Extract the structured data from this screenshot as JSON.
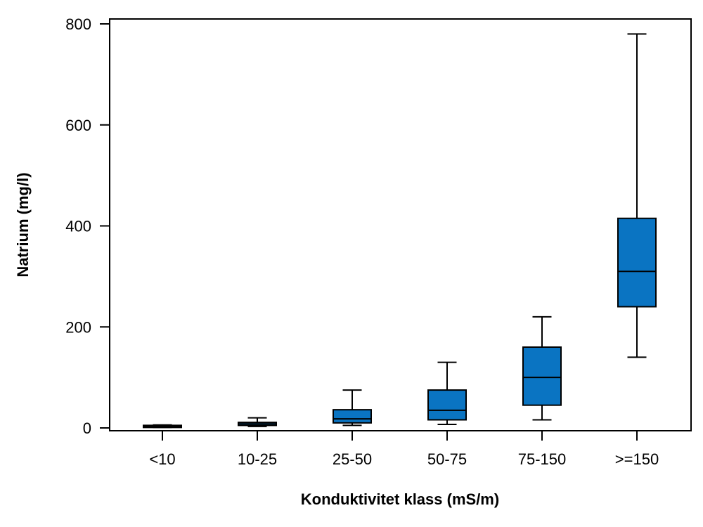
{
  "chart_data": {
    "type": "box",
    "xlabel": "Konduktivitet klass (mS/m)",
    "ylabel": "Natrium (mg/l)",
    "ylim": [
      0,
      800
    ],
    "yticks": [
      0,
      200,
      400,
      600,
      800
    ],
    "grid": false,
    "categories": [
      "<10",
      "10-25",
      "25-50",
      "50-75",
      "75-150",
      ">=150"
    ],
    "boxes": [
      {
        "category": "<10",
        "whisker_low": 1,
        "q1": 2,
        "median": 3,
        "q3": 4,
        "whisker_high": 6
      },
      {
        "category": "10-25",
        "whisker_low": 3,
        "q1": 5,
        "median": 8,
        "q3": 11,
        "whisker_high": 20
      },
      {
        "category": "25-50",
        "whisker_low": 5,
        "q1": 10,
        "median": 18,
        "q3": 36,
        "whisker_high": 75
      },
      {
        "category": "50-75",
        "whisker_low": 7,
        "q1": 16,
        "median": 35,
        "q3": 75,
        "whisker_high": 130
      },
      {
        "category": "75-150",
        "whisker_low": 16,
        "q1": 45,
        "median": 100,
        "q3": 160,
        "whisker_high": 220
      },
      {
        "category": ">=150",
        "whisker_low": 140,
        "q1": 240,
        "median": 310,
        "q3": 415,
        "whisker_high": 780
      }
    ],
    "colors": {
      "box_fill": "#0A74C2",
      "line": "#000000"
    }
  }
}
